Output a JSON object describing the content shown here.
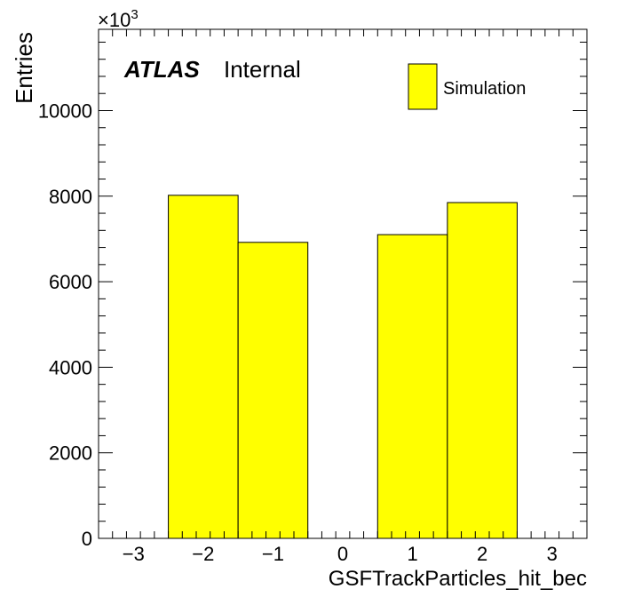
{
  "chart_data": {
    "type": "bar",
    "histogram": true,
    "title": "",
    "xlabel": "GSFTrackParticles_hit_bec",
    "ylabel": "Entries",
    "y_multiplier_label": "×10",
    "y_multiplier_exponent": "3",
    "xlim": [
      -3.5,
      3.5
    ],
    "ylim": [
      0,
      11900
    ],
    "x_ticks": [
      -3,
      -2,
      -1,
      0,
      1,
      2,
      3
    ],
    "x_tick_labels": [
      "−3",
      "−2",
      "−1",
      "0",
      "1",
      "2",
      "3"
    ],
    "y_ticks": [
      0,
      2000,
      4000,
      6000,
      8000,
      10000
    ],
    "y_tick_labels": [
      "0",
      "2000",
      "4000",
      "6000",
      "8000",
      "10000"
    ],
    "bins": [
      {
        "x0": -2.5,
        "x1": -1.5,
        "value": 8020
      },
      {
        "x0": -1.5,
        "x1": -0.5,
        "value": 6920
      },
      {
        "x0": -0.5,
        "x1": 0.5,
        "value": 0
      },
      {
        "x0": 0.5,
        "x1": 1.5,
        "value": 7100
      },
      {
        "x0": 1.5,
        "x1": 2.5,
        "value": 7850
      }
    ],
    "series": [
      {
        "name": "Simulation",
        "color": "#ffff00"
      }
    ],
    "legend": {
      "placement": "top-right"
    },
    "grid": false
  },
  "annotations": {
    "atlas": "ATLAS",
    "internal": "Internal"
  }
}
